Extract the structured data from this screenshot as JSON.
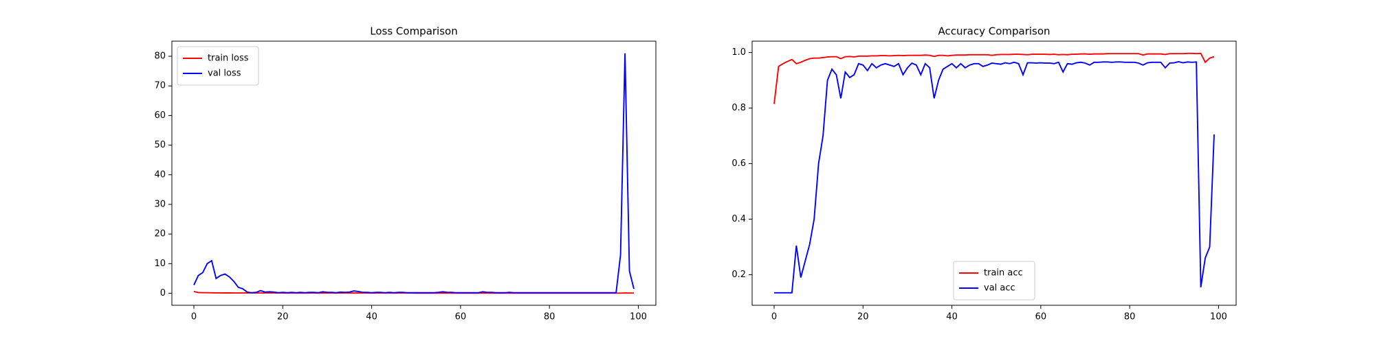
{
  "chart_data": [
    {
      "type": "line",
      "title": "Loss Comparison",
      "x": [
        0,
        1,
        2,
        3,
        4,
        5,
        6,
        7,
        8,
        9,
        10,
        11,
        12,
        13,
        14,
        15,
        16,
        17,
        18,
        19,
        20,
        21,
        22,
        23,
        24,
        25,
        26,
        27,
        28,
        29,
        30,
        31,
        32,
        33,
        34,
        35,
        36,
        37,
        38,
        39,
        40,
        41,
        42,
        43,
        44,
        45,
        46,
        47,
        48,
        49,
        50,
        51,
        52,
        53,
        54,
        55,
        56,
        57,
        58,
        59,
        60,
        61,
        62,
        63,
        64,
        65,
        66,
        67,
        68,
        69,
        70,
        71,
        72,
        73,
        74,
        75,
        76,
        77,
        78,
        79,
        80,
        81,
        82,
        83,
        84,
        85,
        86,
        87,
        88,
        89,
        90,
        91,
        92,
        93,
        94,
        95,
        96,
        97,
        98,
        99
      ],
      "series": [
        {
          "name": "train loss",
          "color": "#ff0000",
          "values": [
            0.6,
            0.25,
            0.2,
            0.18,
            0.15,
            0.14,
            0.13,
            0.12,
            0.12,
            0.11,
            0.11,
            0.1,
            0.1,
            0.1,
            0.1,
            0.1,
            0.1,
            0.1,
            0.1,
            0.1,
            0.09,
            0.09,
            0.09,
            0.09,
            0.09,
            0.09,
            0.09,
            0.09,
            0.09,
            0.09,
            0.08,
            0.08,
            0.08,
            0.08,
            0.08,
            0.08,
            0.1,
            0.08,
            0.08,
            0.08,
            0.07,
            0.07,
            0.07,
            0.07,
            0.07,
            0.07,
            0.07,
            0.07,
            0.07,
            0.07,
            0.06,
            0.06,
            0.06,
            0.06,
            0.06,
            0.06,
            0.06,
            0.06,
            0.06,
            0.06,
            0.06,
            0.06,
            0.06,
            0.06,
            0.06,
            0.06,
            0.06,
            0.06,
            0.06,
            0.05,
            0.05,
            0.05,
            0.05,
            0.05,
            0.05,
            0.05,
            0.05,
            0.05,
            0.05,
            0.05,
            0.05,
            0.05,
            0.05,
            0.06,
            0.05,
            0.05,
            0.05,
            0.05,
            0.05,
            0.05,
            0.05,
            0.05,
            0.05,
            0.05,
            0.05,
            0.05,
            0.05,
            0.1,
            0.08,
            0.08
          ]
        },
        {
          "name": "val loss",
          "color": "#0000ff",
          "values": [
            2.8,
            6,
            7,
            10,
            11,
            5,
            6,
            6.5,
            5.5,
            4,
            2,
            1.5,
            0.4,
            0.2,
            0.3,
            0.9,
            0.4,
            0.5,
            0.4,
            0.2,
            0.3,
            0.2,
            0.3,
            0.2,
            0.3,
            0.2,
            0.3,
            0.3,
            0.2,
            0.5,
            0.3,
            0.3,
            0.2,
            0.4,
            0.3,
            0.4,
            0.8,
            0.6,
            0.3,
            0.3,
            0.2,
            0.3,
            0.3,
            0.2,
            0.3,
            0.2,
            0.3,
            0.3,
            0.2,
            0.2,
            0.2,
            0.2,
            0.2,
            0.2,
            0.2,
            0.3,
            0.5,
            0.3,
            0.3,
            0.2,
            0.2,
            0.2,
            0.2,
            0.2,
            0.2,
            0.5,
            0.3,
            0.3,
            0.2,
            0.2,
            0.2,
            0.3,
            0.2,
            0.2,
            0.2,
            0.2,
            0.2,
            0.2,
            0.2,
            0.2,
            0.2,
            0.2,
            0.2,
            0.2,
            0.2,
            0.2,
            0.2,
            0.2,
            0.2,
            0.2,
            0.2,
            0.2,
            0.2,
            0.2,
            0.2,
            0.2,
            13,
            81,
            7.5,
            1.5
          ]
        }
      ],
      "xlim": [
        -4.95,
        103.95
      ],
      "xticks": [
        0,
        20,
        40,
        60,
        80,
        100
      ],
      "ylim": [
        -4.05,
        85.1
      ],
      "yticks": [
        0,
        10,
        20,
        30,
        40,
        50,
        60,
        70,
        80
      ],
      "legend": "upper left"
    },
    {
      "type": "line",
      "title": "Accuracy Comparison",
      "x": [
        0,
        1,
        2,
        3,
        4,
        5,
        6,
        7,
        8,
        9,
        10,
        11,
        12,
        13,
        14,
        15,
        16,
        17,
        18,
        19,
        20,
        21,
        22,
        23,
        24,
        25,
        26,
        27,
        28,
        29,
        30,
        31,
        32,
        33,
        34,
        35,
        36,
        37,
        38,
        39,
        40,
        41,
        42,
        43,
        44,
        45,
        46,
        47,
        48,
        49,
        50,
        51,
        52,
        53,
        54,
        55,
        56,
        57,
        58,
        59,
        60,
        61,
        62,
        63,
        64,
        65,
        66,
        67,
        68,
        69,
        70,
        71,
        72,
        73,
        74,
        75,
        76,
        77,
        78,
        79,
        80,
        81,
        82,
        83,
        84,
        85,
        86,
        87,
        88,
        89,
        90,
        91,
        92,
        93,
        94,
        95,
        96,
        97,
        98,
        99
      ],
      "series": [
        {
          "name": "train acc",
          "color": "#ff0000",
          "values": [
            0.815,
            0.95,
            0.96,
            0.968,
            0.975,
            0.96,
            0.965,
            0.972,
            0.978,
            0.98,
            0.98,
            0.982,
            0.984,
            0.985,
            0.985,
            0.978,
            0.985,
            0.986,
            0.984,
            0.987,
            0.987,
            0.987,
            0.988,
            0.988,
            0.989,
            0.989,
            0.988,
            0.989,
            0.99,
            0.989,
            0.99,
            0.99,
            0.99,
            0.99,
            0.991,
            0.99,
            0.986,
            0.99,
            0.99,
            0.988,
            0.99,
            0.991,
            0.991,
            0.991,
            0.992,
            0.992,
            0.992,
            0.992,
            0.992,
            0.99,
            0.992,
            0.993,
            0.993,
            0.993,
            0.994,
            0.994,
            0.993,
            0.992,
            0.994,
            0.994,
            0.994,
            0.994,
            0.993,
            0.994,
            0.992,
            0.993,
            0.992,
            0.994,
            0.994,
            0.995,
            0.995,
            0.994,
            0.995,
            0.995,
            0.995,
            0.996,
            0.996,
            0.996,
            0.996,
            0.996,
            0.996,
            0.996,
            0.996,
            0.991,
            0.995,
            0.995,
            0.995,
            0.995,
            0.993,
            0.996,
            0.996,
            0.996,
            0.996,
            0.997,
            0.997,
            0.996,
            0.997,
            0.965,
            0.98,
            0.985
          ]
        },
        {
          "name": "val acc",
          "color": "#0000ff",
          "values": [
            0.135,
            0.135,
            0.135,
            0.135,
            0.135,
            0.305,
            0.19,
            0.25,
            0.31,
            0.4,
            0.6,
            0.7,
            0.9,
            0.94,
            0.92,
            0.835,
            0.93,
            0.91,
            0.92,
            0.96,
            0.955,
            0.935,
            0.96,
            0.945,
            0.955,
            0.96,
            0.955,
            0.95,
            0.96,
            0.92,
            0.945,
            0.962,
            0.955,
            0.92,
            0.96,
            0.945,
            0.835,
            0.9,
            0.94,
            0.95,
            0.96,
            0.945,
            0.96,
            0.945,
            0.955,
            0.96,
            0.96,
            0.95,
            0.955,
            0.962,
            0.96,
            0.958,
            0.963,
            0.96,
            0.965,
            0.96,
            0.92,
            0.963,
            0.963,
            0.962,
            0.963,
            0.962,
            0.962,
            0.96,
            0.965,
            0.93,
            0.96,
            0.958,
            0.963,
            0.965,
            0.962,
            0.955,
            0.965,
            0.965,
            0.966,
            0.966,
            0.965,
            0.966,
            0.966,
            0.965,
            0.965,
            0.965,
            0.962,
            0.955,
            0.963,
            0.965,
            0.965,
            0.965,
            0.945,
            0.962,
            0.963,
            0.967,
            0.963,
            0.966,
            0.965,
            0.966,
            0.155,
            0.26,
            0.3,
            0.705
          ]
        }
      ],
      "xlim": [
        -4.95,
        103.95
      ],
      "xticks": [
        0,
        20,
        40,
        60,
        80,
        100
      ],
      "ylim": [
        0.09,
        1.041
      ],
      "yticks": [
        0.2,
        0.4,
        0.6,
        0.8,
        {
          "value": 1,
          "label": "1.0"
        }
      ],
      "legend": "lower center"
    }
  ]
}
